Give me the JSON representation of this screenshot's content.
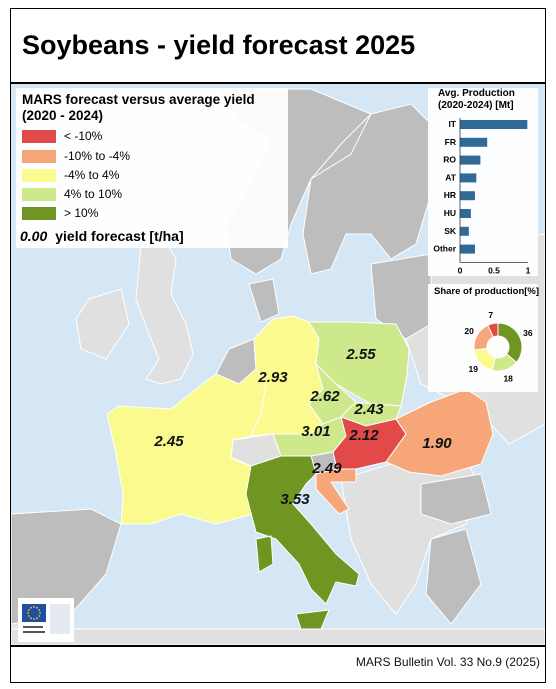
{
  "title": "Soybeans - yield forecast 2025",
  "footer": "MARS Bulletin Vol. 33 No.9 (2025)",
  "legend": {
    "title_line1": "MARS forecast versus average yield",
    "title_line2": "(2020 - 2024)",
    "classes": [
      {
        "label": "< -10%",
        "color": "#e24a4a"
      },
      {
        "label": "-10% to -4%",
        "color": "#f7a67a"
      },
      {
        "label": "-4% to 4%",
        "color": "#fafa8e"
      },
      {
        "label": "4% to 10%",
        "color": "#cde98b"
      },
      {
        "label": "> 10%",
        "color": "#6f9523"
      }
    ],
    "example_value": "0.00",
    "example_label": "yield forecast [t/ha]"
  },
  "colors": {
    "sea": "#d5e7f5",
    "other_land": "#bdbdbd",
    "non_eu_land": "#e0e0e0",
    "border": "#ffffff",
    "bar": "#2f6b96"
  },
  "countries": [
    {
      "name": "FR",
      "value": "2.45",
      "class": 2
    },
    {
      "name": "DE",
      "value": "2.93",
      "class": 2
    },
    {
      "name": "PL",
      "value": "2.55",
      "class": 3
    },
    {
      "name": "CZ",
      "value": "2.62",
      "class": 3
    },
    {
      "name": "SK",
      "value": "2.43",
      "class": 3
    },
    {
      "name": "AT",
      "value": "3.01",
      "class": 3
    },
    {
      "name": "HU",
      "value": "2.12",
      "class": 0
    },
    {
      "name": "RO",
      "value": "1.90",
      "class": 1
    },
    {
      "name": "HR",
      "value": "2.49",
      "class": 1
    },
    {
      "name": "IT",
      "value": "3.53",
      "class": 4
    }
  ],
  "chart_data": [
    {
      "type": "bar",
      "title_line1": "Avg. Production",
      "title_line2": "(2020-2024) [Mt]",
      "categories": [
        "IT",
        "FR",
        "RO",
        "AT",
        "HR",
        "HU",
        "SK",
        "Other"
      ],
      "values": [
        0.99,
        0.4,
        0.3,
        0.24,
        0.22,
        0.16,
        0.13,
        0.22
      ],
      "xlim": [
        0,
        1
      ],
      "xticks": [
        "0",
        "0.5",
        "1"
      ]
    },
    {
      "type": "pie",
      "title": "Share of production[%]",
      "values": [
        36,
        18,
        19,
        20,
        7
      ],
      "labels": [
        "36",
        "18",
        "19",
        "20",
        "7"
      ],
      "colors": [
        "#6f9523",
        "#cde98b",
        "#fafa8e",
        "#f7a67a",
        "#e24a4a"
      ]
    }
  ]
}
